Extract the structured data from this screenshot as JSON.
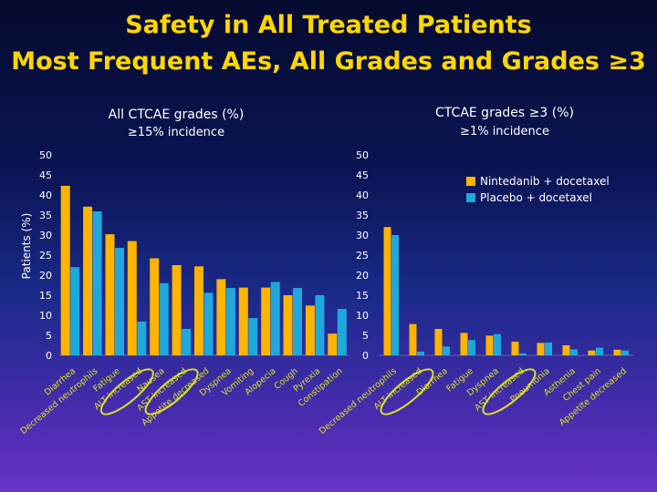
{
  "title": {
    "line1": "Safety in All Treated Patients",
    "line2": "Most Frequent AEs, All Grades and Grades ≥3"
  },
  "colors": {
    "nintedanib": "#ffb400",
    "placebo": "#20a8dc",
    "title": "#ffd700",
    "highlight": "#d8e020",
    "text": "#ffffff"
  },
  "chart_data": [
    {
      "type": "bar",
      "title": "All CTCAE grades (%)",
      "subtitle": "≥15% incidence",
      "ylabel": "Patients (%)",
      "ylim": [
        0,
        50
      ],
      "yticks": [
        0,
        5,
        10,
        15,
        20,
        25,
        30,
        35,
        40,
        45,
        50
      ],
      "categories": [
        "Diarrhea",
        "Decreased neutrophils",
        "Fatigue",
        "ALT increased",
        "Nausea",
        "AST increased",
        "Appetite decreased",
        "Dyspnea",
        "Vomiting",
        "Alopecia",
        "Cough",
        "Pyrexia",
        "Constipation"
      ],
      "highlighted": [
        "ALT increased",
        "AST increased"
      ],
      "series": [
        {
          "name": "Nintedanib + docetaxel",
          "values": [
            42.3,
            37.1,
            30.2,
            28.5,
            24.2,
            22.5,
            22.2,
            19.0,
            16.9,
            16.9,
            15.0,
            12.4,
            5.4
          ]
        },
        {
          "name": "Placebo + docetaxel",
          "values": [
            22.0,
            35.9,
            26.8,
            8.4,
            18.0,
            6.6,
            15.6,
            16.8,
            9.3,
            18.3,
            16.8,
            15.0,
            11.6
          ]
        }
      ]
    },
    {
      "type": "bar",
      "title": "CTCAE grades ≥3 (%)",
      "subtitle": "≥1% incidence",
      "ylim": [
        0,
        50
      ],
      "yticks": [
        0,
        5,
        10,
        15,
        20,
        25,
        30,
        35,
        40,
        45,
        50
      ],
      "categories": [
        "Decreased neutrophils",
        "ALT increased",
        "Diarrhea",
        "Fatigue",
        "Dyspnea",
        "AST increased",
        "Pneumonia",
        "Asthenia",
        "Chest pain",
        "Appetite decreased"
      ],
      "highlighted": [
        "ALT increased",
        "AST increased"
      ],
      "legend": {
        "position": "top-right",
        "entries": [
          "Nintedanib + docetaxel",
          "Placebo + docetaxel"
        ]
      },
      "series": [
        {
          "name": "Nintedanib + docetaxel",
          "values": [
            32.0,
            7.8,
            6.6,
            5.6,
            4.9,
            3.4,
            3.1,
            2.5,
            1.2,
            1.4
          ]
        },
        {
          "name": "Placebo + docetaxel",
          "values": [
            30.0,
            0.9,
            2.2,
            3.8,
            5.3,
            0.5,
            3.2,
            1.5,
            1.9,
            1.2
          ]
        }
      ]
    }
  ]
}
